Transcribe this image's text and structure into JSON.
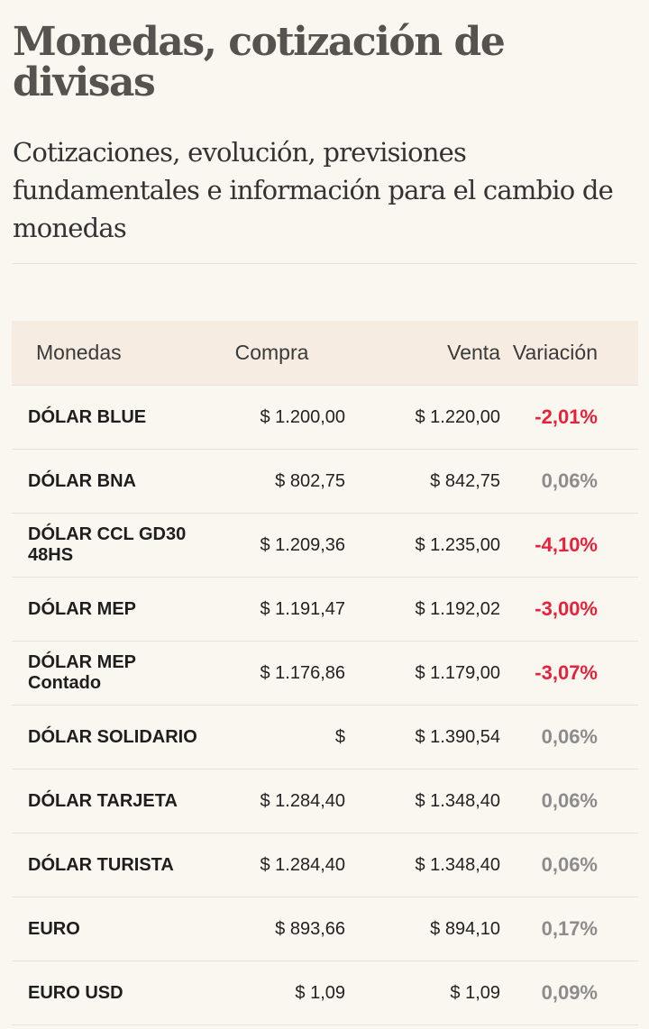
{
  "title": "Monedas, cotización de divisas",
  "subtitle": "Cotizaciones, evolución, previsiones fundamentales e información para el cambio de monedas",
  "table": {
    "headers": [
      "Monedas",
      "Compra",
      "Venta",
      "Variación"
    ],
    "rows": [
      {
        "name": "DÓLAR BLUE",
        "compra": "$ 1.200,00",
        "venta": "$ 1.220,00",
        "var": "-2,01%",
        "neg": true
      },
      {
        "name": "DÓLAR BNA",
        "compra": "$ 802,75",
        "venta": "$ 842,75",
        "var": "0,06%",
        "neg": false
      },
      {
        "name": "DÓLAR CCL GD30 48HS",
        "compra": "$ 1.209,36",
        "venta": "$ 1.235,00",
        "var": "-4,10%",
        "neg": true
      },
      {
        "name": "DÓLAR MEP",
        "compra": "$ 1.191,47",
        "venta": "$ 1.192,02",
        "var": "-3,00%",
        "neg": true
      },
      {
        "name": "DÓLAR MEP Contado",
        "compra": "$ 1.176,86",
        "venta": "$ 1.179,00",
        "var": "-3,07%",
        "neg": true
      },
      {
        "name": "DÓLAR SOLIDARIO",
        "compra": "$",
        "venta": "$ 1.390,54",
        "var": "0,06%",
        "neg": false
      },
      {
        "name": "DÓLAR TARJETA",
        "compra": "$ 1.284,40",
        "venta": "$ 1.348,40",
        "var": "0,06%",
        "neg": false
      },
      {
        "name": "DÓLAR TURISTA",
        "compra": "$ 1.284,40",
        "venta": "$ 1.348,40",
        "var": "0,06%",
        "neg": false
      },
      {
        "name": "EURO",
        "compra": "$ 893,66",
        "venta": "$ 894,10",
        "var": "0,17%",
        "neg": false
      },
      {
        "name": "EURO USD",
        "compra": "$ 1,09",
        "venta": "$ 1,09",
        "var": "0,09%",
        "neg": false
      }
    ]
  },
  "colors": {
    "negative": "#e8213a",
    "neutral": "#8c8c8c"
  }
}
